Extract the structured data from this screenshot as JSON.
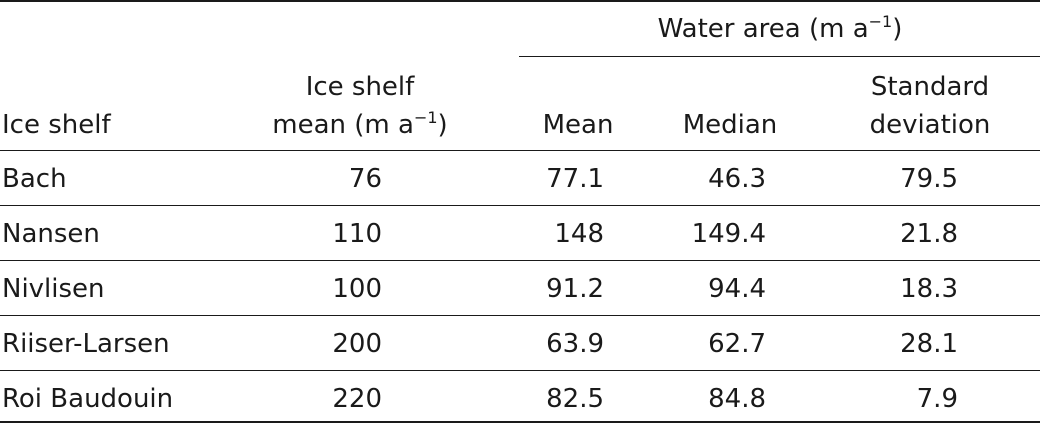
{
  "table": {
    "header": {
      "group_label": "Water area (m a",
      "group_label_sup": "−1",
      "group_label_end": ")",
      "col_ice_shelf": "Ice shelf",
      "col_shelf_mean_line1": "Ice shelf",
      "col_shelf_mean_line2": "mean (m a",
      "col_shelf_mean_sup": "−1",
      "col_shelf_mean_end": ")",
      "col_mean": "Mean",
      "col_median": "Median",
      "col_sd_line1": "Standard",
      "col_sd_line2": "deviation"
    },
    "rows": [
      {
        "name": "Bach",
        "shelf_mean": "76",
        "mean": "77.1",
        "median": "46.3",
        "sd": "79.5"
      },
      {
        "name": "Nansen",
        "shelf_mean": "110",
        "mean": "148",
        "median": "149.4",
        "sd": "21.8"
      },
      {
        "name": "Nivlisen",
        "shelf_mean": "100",
        "mean": "91.2",
        "median": "94.4",
        "sd": "18.3"
      },
      {
        "name": "Riiser-Larsen",
        "shelf_mean": "200",
        "mean": "63.9",
        "median": "62.7",
        "sd": "28.1"
      },
      {
        "name": "Roi Baudouin",
        "shelf_mean": "220",
        "mean": "82.5",
        "median": "84.8",
        "sd": "7.9"
      }
    ]
  }
}
